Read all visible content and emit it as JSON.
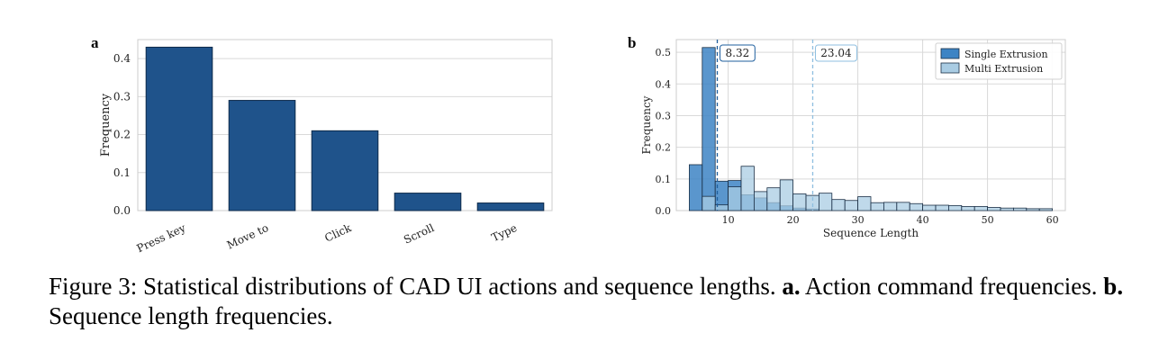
{
  "colors": {
    "bar_fill": "#1f538b",
    "single": "#3d84c4",
    "multi": "#a9cce3",
    "grid": "#d9d9d9",
    "spine": "#cccccc"
  },
  "panel_a": {
    "letter": "a"
  },
  "panel_b": {
    "letter": "b"
  },
  "caption": {
    "prefix": "Figure 3: Statistical distributions of CAD UI actions and sequence lengths.",
    "label_a": "a.",
    "text_a": "Action command frequencies.",
    "label_b": "b.",
    "text_b": "Sequence length frequencies."
  },
  "chart_data": [
    {
      "type": "bar",
      "categories": [
        "Press key",
        "Move to",
        "Click",
        "Scroll",
        "Type"
      ],
      "values": [
        0.43,
        0.29,
        0.21,
        0.046,
        0.02
      ],
      "xlabel": "",
      "ylabel": "Frequency",
      "ylim": [
        0,
        0.45
      ],
      "yticks": [
        "0.0",
        "0.1",
        "0.2",
        "0.3",
        "0.4"
      ],
      "grid": true
    },
    {
      "type": "bar",
      "subtype": "histogram",
      "xlabel": "Sequence Length",
      "ylabel": "Frequency",
      "xlim": [
        2,
        62
      ],
      "ylim": [
        0,
        0.54
      ],
      "xticks": [
        "10",
        "20",
        "30",
        "40",
        "50",
        "60"
      ],
      "yticks": [
        "0.0",
        "0.1",
        "0.2",
        "0.3",
        "0.4",
        "0.5"
      ],
      "grid": true,
      "legend_position": "top-right",
      "bin_width": 2,
      "series": [
        {
          "name": "Single Extrusion",
          "bins": [
            {
              "x0": 4,
              "x1": 6,
              "value": 0.145
            },
            {
              "x0": 6,
              "x1": 8,
              "value": 0.515
            },
            {
              "x0": 8,
              "x1": 10,
              "value": 0.093
            },
            {
              "x0": 10,
              "x1": 12,
              "value": 0.095
            },
            {
              "x0": 12,
              "x1": 14,
              "value": 0.05
            },
            {
              "x0": 14,
              "x1": 16,
              "value": 0.04
            },
            {
              "x0": 16,
              "x1": 18,
              "value": 0.025
            },
            {
              "x0": 18,
              "x1": 20,
              "value": 0.015
            },
            {
              "x0": 20,
              "x1": 22,
              "value": 0.008
            },
            {
              "x0": 22,
              "x1": 24,
              "value": 0.005
            }
          ],
          "mean": 8.32
        },
        {
          "name": "Multi Extrusion",
          "bins": [
            {
              "x0": 6,
              "x1": 8,
              "value": 0.045
            },
            {
              "x0": 8,
              "x1": 10,
              "value": 0.018
            },
            {
              "x0": 10,
              "x1": 12,
              "value": 0.075
            },
            {
              "x0": 12,
              "x1": 14,
              "value": 0.14
            },
            {
              "x0": 14,
              "x1": 16,
              "value": 0.06
            },
            {
              "x0": 16,
              "x1": 18,
              "value": 0.072
            },
            {
              "x0": 18,
              "x1": 20,
              "value": 0.097
            },
            {
              "x0": 20,
              "x1": 22,
              "value": 0.053
            },
            {
              "x0": 22,
              "x1": 24,
              "value": 0.048
            },
            {
              "x0": 24,
              "x1": 26,
              "value": 0.055
            },
            {
              "x0": 26,
              "x1": 28,
              "value": 0.035
            },
            {
              "x0": 28,
              "x1": 30,
              "value": 0.032
            },
            {
              "x0": 30,
              "x1": 32,
              "value": 0.044
            },
            {
              "x0": 32,
              "x1": 34,
              "value": 0.025
            },
            {
              "x0": 34,
              "x1": 36,
              "value": 0.026
            },
            {
              "x0": 36,
              "x1": 38,
              "value": 0.026
            },
            {
              "x0": 38,
              "x1": 40,
              "value": 0.022
            },
            {
              "x0": 40,
              "x1": 42,
              "value": 0.017
            },
            {
              "x0": 42,
              "x1": 44,
              "value": 0.017
            },
            {
              "x0": 44,
              "x1": 46,
              "value": 0.016
            },
            {
              "x0": 46,
              "x1": 48,
              "value": 0.013
            },
            {
              "x0": 48,
              "x1": 50,
              "value": 0.013
            },
            {
              "x0": 50,
              "x1": 52,
              "value": 0.01
            },
            {
              "x0": 52,
              "x1": 54,
              "value": 0.008
            },
            {
              "x0": 54,
              "x1": 56,
              "value": 0.008
            },
            {
              "x0": 56,
              "x1": 58,
              "value": 0.006
            },
            {
              "x0": 58,
              "x1": 60,
              "value": 0.006
            }
          ],
          "mean": 23.04
        }
      ],
      "annotations": [
        "8.32",
        "23.04"
      ]
    }
  ]
}
